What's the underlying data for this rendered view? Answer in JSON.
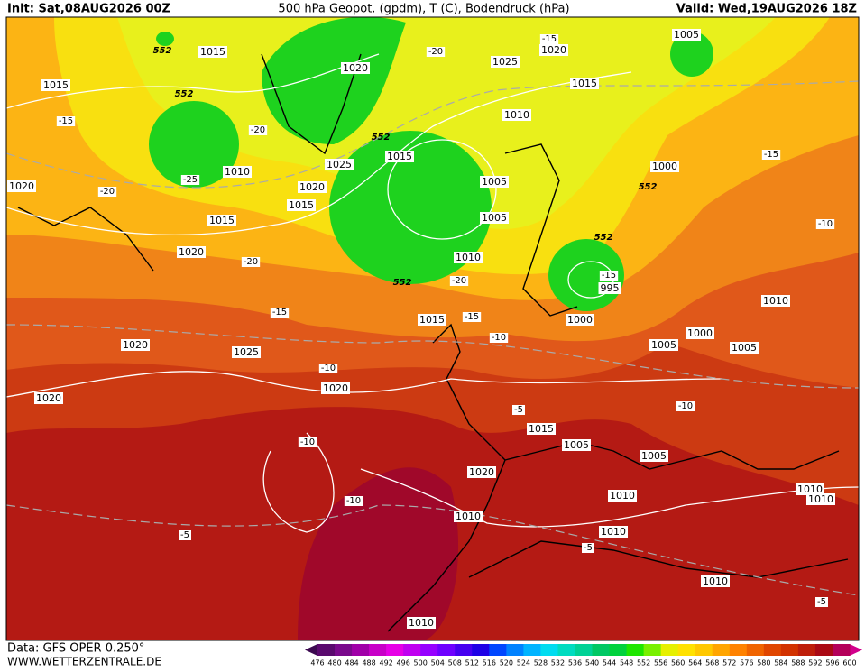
{
  "header": {
    "init": "Init: Sat,08AUG2026 00Z",
    "title": "500 hPa Geopot. (gpdm), T (C), Bodendruck (hPa)",
    "valid": "Valid: Wed,19AUG2026 18Z"
  },
  "footer": {
    "data": "Data: GFS OPER 0.250°",
    "site": "WWW.WETTERZENTRALE.DE"
  },
  "colorbar": {
    "labels": [
      476,
      480,
      484,
      488,
      492,
      496,
      500,
      504,
      508,
      512,
      516,
      520,
      524,
      528,
      532,
      536,
      540,
      544,
      548,
      552,
      556,
      560,
      564,
      568,
      572,
      576,
      580,
      584,
      588,
      592,
      596,
      600
    ],
    "colors": [
      "#5a0a6e",
      "#7a0a8c",
      "#a000a8",
      "#c800c8",
      "#e600e6",
      "#c000f0",
      "#9600ff",
      "#6e00ff",
      "#4600f0",
      "#1e00e6",
      "#0046ff",
      "#0082ff",
      "#00b4ff",
      "#00dcf0",
      "#00dcc0",
      "#00d296",
      "#00c864",
      "#00d23c",
      "#1ee600",
      "#78f000",
      "#e6f000",
      "#ffe100",
      "#ffc800",
      "#ffa500",
      "#ff8200",
      "#f06400",
      "#e04600",
      "#d23200",
      "#be1e0a",
      "#aa0a14",
      "#b4005a"
    ]
  },
  "map": {
    "pressure_labels": [
      1015,
      1015,
      1020,
      1025,
      1015,
      1020,
      1005,
      1010,
      1010,
      1025,
      1015,
      1020,
      1015,
      1005,
      1005,
      1000,
      1020,
      1015,
      1020,
      1010,
      995,
      1000,
      1015,
      1010,
      1000,
      1005,
      1005,
      1020,
      1025,
      1020,
      1020,
      1015,
      1005,
      1005,
      1020,
      1010,
      1010,
      1010,
      1010,
      1010,
      1010,
      1010
    ],
    "temp_labels": [
      "-15",
      "-20",
      "-15",
      "-20",
      "-25",
      "-20",
      "-15",
      "-10",
      "-20",
      "-20",
      "-15",
      "-15",
      "-15",
      "-10",
      "-10",
      "-5",
      "-10",
      "-10",
      "-10",
      "-5",
      "-5",
      "-5"
    ],
    "height_labels": [
      552,
      552,
      552,
      552,
      552,
      552
    ]
  }
}
